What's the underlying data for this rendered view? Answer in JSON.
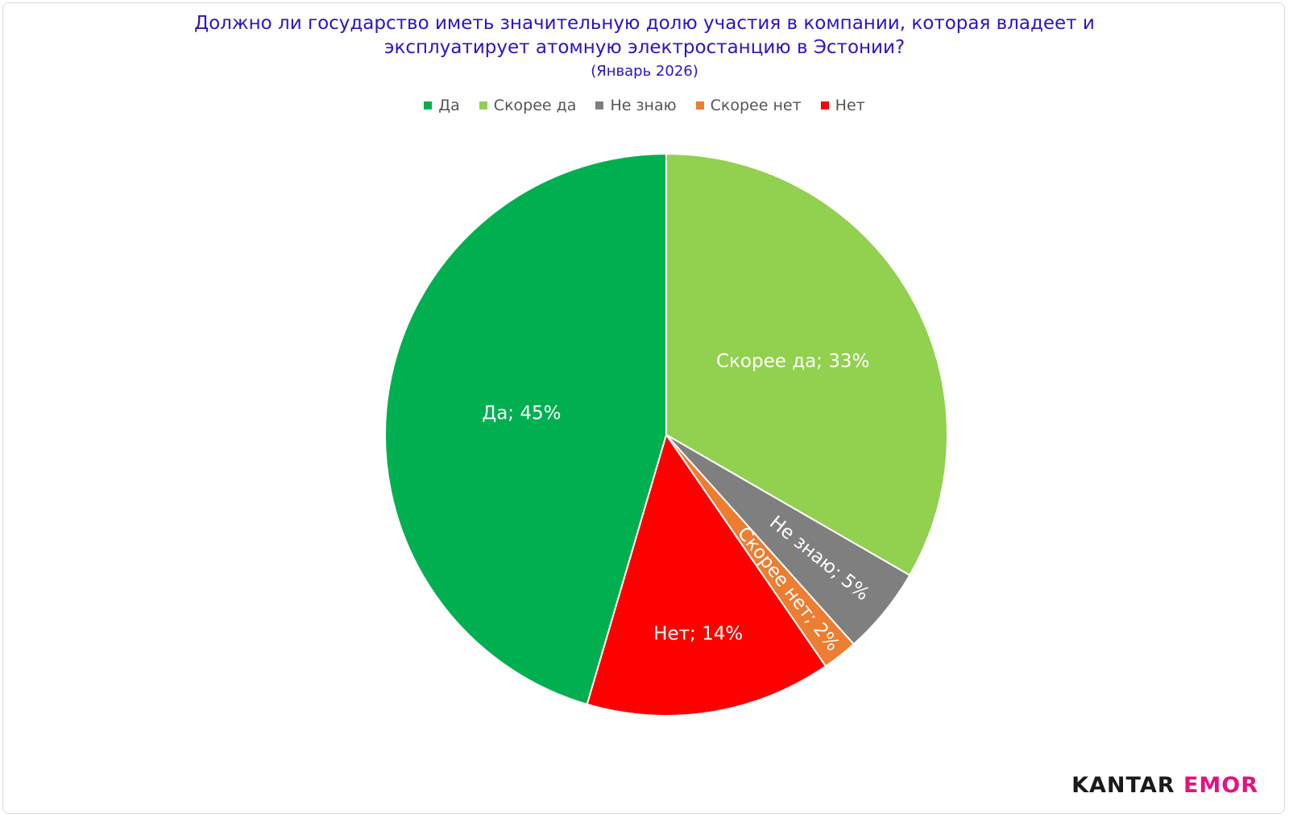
{
  "chart_data": {
    "type": "pie",
    "title": "Должно ли государство иметь значительную долю участия в компании, которая владеет и эксплуатирует атомную электростанцию в Эстонии?",
    "subtitle": "(Январь 2026)",
    "legend_position": "top",
    "slices": [
      {
        "name": "Да",
        "value": 45,
        "label": "Да; 45%",
        "color": "#00b050"
      },
      {
        "name": "Скорее да",
        "value": 33,
        "label": "Скорее да; 33%",
        "color": "#92d050"
      },
      {
        "name": "Не знаю",
        "value": 5,
        "label": "Не знаю; 5%",
        "color": "#7f7f7f"
      },
      {
        "name": "Скорее нет",
        "value": 2,
        "label": "Скорее нет; 2%",
        "color": "#ed7d31"
      },
      {
        "name": "Нет",
        "value": 14,
        "label": "Нет; 14%",
        "color": "#ff0000"
      }
    ],
    "slice_order": [
      "Скорее да",
      "Не знаю",
      "Скорее нет",
      "Нет",
      "Да"
    ]
  },
  "brand": {
    "logo_part1": "KANTAR",
    "logo_part2": "EMOR",
    "color1": "#1a1a1a",
    "color2": "#e2137e"
  }
}
